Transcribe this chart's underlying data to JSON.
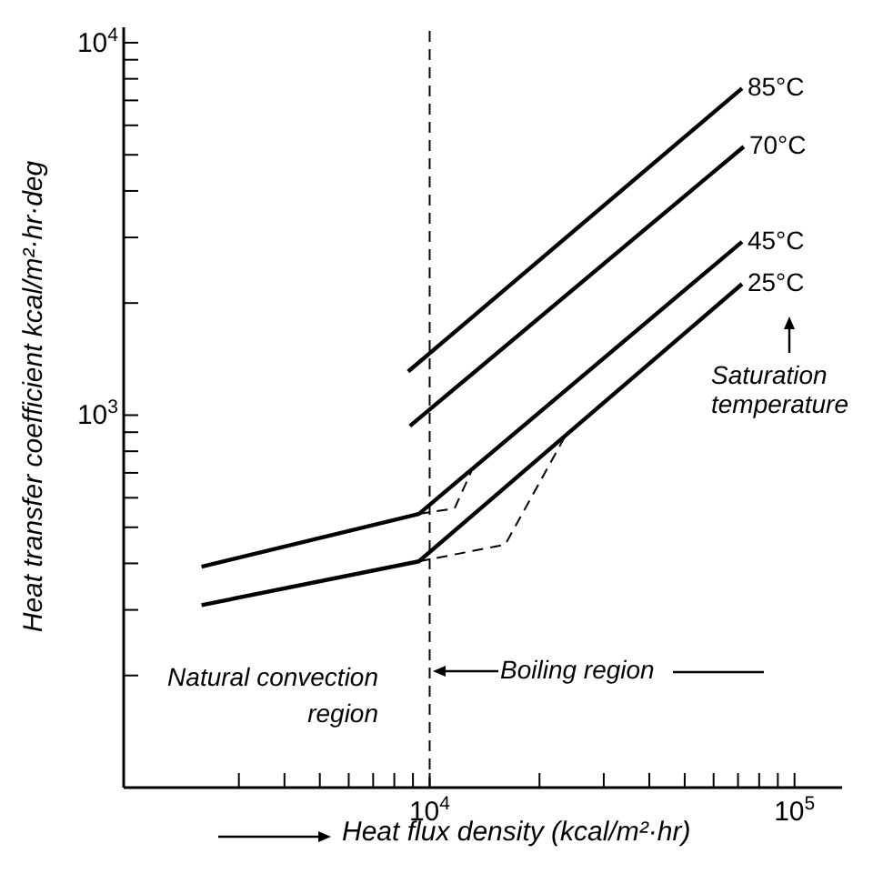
{
  "chart_data": {
    "type": "line",
    "xlabel": "Heat flux density (kcal/m²·hr)",
    "ylabel": "Heat transfer coefficient kcal/m²·hr·deg",
    "log": "xy",
    "grid": false,
    "legend": false,
    "marker": "none",
    "xlim": [
      1450,
      135000
    ],
    "ylim": [
      100,
      11000
    ],
    "xticks": [
      {
        "value": 3000,
        "label": null
      },
      {
        "value": 4000,
        "label": null
      },
      {
        "value": 5000,
        "label": null
      },
      {
        "value": 6000,
        "label": null
      },
      {
        "value": 7000,
        "label": null
      },
      {
        "value": 8000,
        "label": null
      },
      {
        "value": 9000,
        "label": null
      },
      {
        "value": 10000,
        "label": "10$^{4}$"
      },
      {
        "value": 20000,
        "label": null
      },
      {
        "value": 30000,
        "label": null
      },
      {
        "value": 40000,
        "label": null
      },
      {
        "value": 50000,
        "label": null
      },
      {
        "value": 60000,
        "label": null
      },
      {
        "value": 70000,
        "label": null
      },
      {
        "value": 80000,
        "label": null
      },
      {
        "value": 90000,
        "label": null
      },
      {
        "value": 100000,
        "label": "10$^{5}$"
      }
    ],
    "yticks": [
      {
        "value": 200,
        "label": null
      },
      {
        "value": 300,
        "label": null
      },
      {
        "value": 400,
        "label": null
      },
      {
        "value": 500,
        "label": null
      },
      {
        "value": 600,
        "label": null
      },
      {
        "value": 700,
        "label": null
      },
      {
        "value": 800,
        "label": null
      },
      {
        "value": 900,
        "label": null
      },
      {
        "value": 1000,
        "label": "10$^{3}$"
      },
      {
        "value": 2000,
        "label": null
      },
      {
        "value": 3000,
        "label": null
      },
      {
        "value": 4000,
        "label": null
      },
      {
        "value": 5000,
        "label": null
      },
      {
        "value": 6000,
        "label": null
      },
      {
        "value": 7000,
        "label": null
      },
      {
        "value": 8000,
        "label": null
      },
      {
        "value": 9000,
        "label": null
      },
      {
        "value": 10000,
        "label": "10$^{4}$"
      }
    ],
    "series": [
      {
        "name": "85°C",
        "color": "#000000",
        "line_style": "solid",
        "x": [
          8730,
          71800
        ],
        "values": [
          1310,
          7540
        ]
      },
      {
        "name": "70°C",
        "color": "#000000",
        "line_style": "solid",
        "x": [
          8830,
          72600
        ],
        "values": [
          935,
          5260
        ]
      },
      {
        "name": "45°C",
        "color": "#000000",
        "line_style": "solid",
        "x": [
          2370,
          9340,
          71800
        ],
        "values": [
          392,
          543,
          2920
        ]
      },
      {
        "name": "25°C",
        "color": "#000000",
        "line_style": "solid",
        "x": [
          2370,
          9340,
          71800
        ],
        "values": [
          309,
          405,
          2250
        ]
      },
      {
        "color": "#000000",
        "line_style": "dashed",
        "x": [
          9340,
          11700,
          13000
        ],
        "values": [
          543,
          562,
          705
        ]
      },
      {
        "color": "#000000",
        "line_style": "dashed",
        "x": [
          9340,
          16100,
          23900
        ],
        "values": [
          405,
          449,
          904
        ]
      }
    ],
    "ref_lines": [
      {
        "axis": "x",
        "value": 10000,
        "color": "#000000",
        "line_style": "dashed"
      }
    ],
    "annotations": [
      "Saturation temperature",
      "Natural convection region",
      "Boiling region"
    ]
  }
}
